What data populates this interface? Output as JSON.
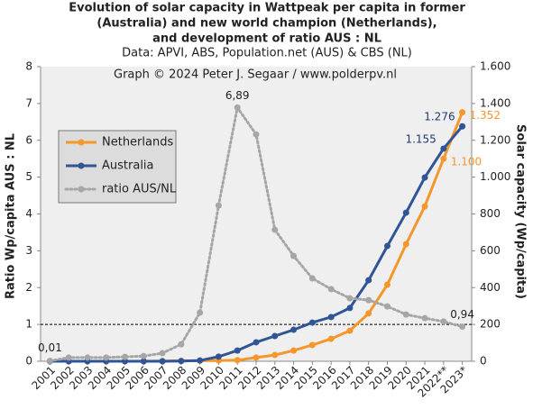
{
  "chart_data": {
    "type": "line",
    "title": [
      "Evolution of solar capacity in Wattpeak per capita in former",
      "(Australia) and new world champion (Netherlands),",
      "and development of ratio AUS : NL"
    ],
    "subtitle": "Data: APVI, ABS, Population.net (AUS) & CBS (NL)",
    "annotation": "Graph © 2024 Peter J. Segaar / www.polderpv.nl",
    "ylabel": "Ratio Wp/capita AUS : NL",
    "y2label": "Solar capacity (Wp/capita)",
    "categories": [
      "2001",
      "2002",
      "2003",
      "2004",
      "2005",
      "2006",
      "2007",
      "2008",
      "2009",
      "2010",
      "2011",
      "2012",
      "2013",
      "2014",
      "2015",
      "2016",
      "2017",
      "2018",
      "2019",
      "2020",
      "2021",
      "2022**",
      "2023*"
    ],
    "ylim": [
      0,
      8
    ],
    "yticks": [
      0,
      1,
      2,
      3,
      4,
      5,
      6,
      7,
      8
    ],
    "y2lim": [
      0,
      1600
    ],
    "y2ticks": [
      0,
      200,
      400,
      600,
      800,
      {
        "value": 1000,
        "label": "1.000"
      },
      {
        "value": 1200,
        "label": "1.200"
      },
      {
        "value": 1400,
        "label": "1.400"
      },
      {
        "value": 1600,
        "label": "1.600"
      }
    ],
    "hline": 1,
    "grid": false,
    "legend": "upper left",
    "series": [
      {
        "name": "Netherlands",
        "color": "#f5972a",
        "label_color": "#f5972a",
        "axis": "y2",
        "style": "solid",
        "values": [
          0,
          0,
          0,
          0,
          0,
          0,
          1,
          2,
          3,
          4,
          6,
          20,
          34,
          58,
          88,
          122,
          166,
          260,
          416,
          636,
          841,
          1100,
          1352
        ],
        "value_labels": [
          null,
          null,
          null,
          null,
          null,
          null,
          null,
          null,
          null,
          null,
          null,
          null,
          null,
          null,
          null,
          null,
          null,
          null,
          null,
          null,
          null,
          "1.100",
          "1.352"
        ]
      },
      {
        "name": "Australia",
        "color": "#2f5597",
        "label_color": "#1f3a6e",
        "axis": "y2",
        "style": "solid",
        "values": [
          0,
          0,
          0,
          0,
          0,
          0,
          0,
          1,
          4,
          25,
          58,
          103,
          137,
          171,
          210,
          240,
          289,
          440,
          626,
          807,
          998,
          1155,
          1276
        ],
        "value_labels": [
          null,
          null,
          null,
          null,
          null,
          null,
          null,
          null,
          null,
          null,
          null,
          null,
          null,
          null,
          null,
          null,
          null,
          null,
          null,
          null,
          null,
          "1.155",
          "1.276"
        ]
      },
      {
        "name": "ratio AUS/NL",
        "color": "#a6a6a6",
        "label_color": "#222222",
        "axis": "y",
        "style": "dotted",
        "values": [
          0.01,
          0.1,
          0.1,
          0.1,
          0.12,
          0.14,
          0.22,
          0.46,
          1.32,
          4.23,
          6.89,
          6.16,
          3.57,
          2.86,
          2.25,
          1.96,
          1.71,
          1.66,
          1.49,
          1.27,
          1.17,
          1.08,
          0.94
        ],
        "value_labels": [
          "0,01",
          null,
          null,
          null,
          null,
          null,
          null,
          null,
          null,
          null,
          "6,89",
          null,
          null,
          null,
          null,
          null,
          null,
          null,
          null,
          null,
          null,
          null,
          "0,94"
        ]
      }
    ]
  }
}
